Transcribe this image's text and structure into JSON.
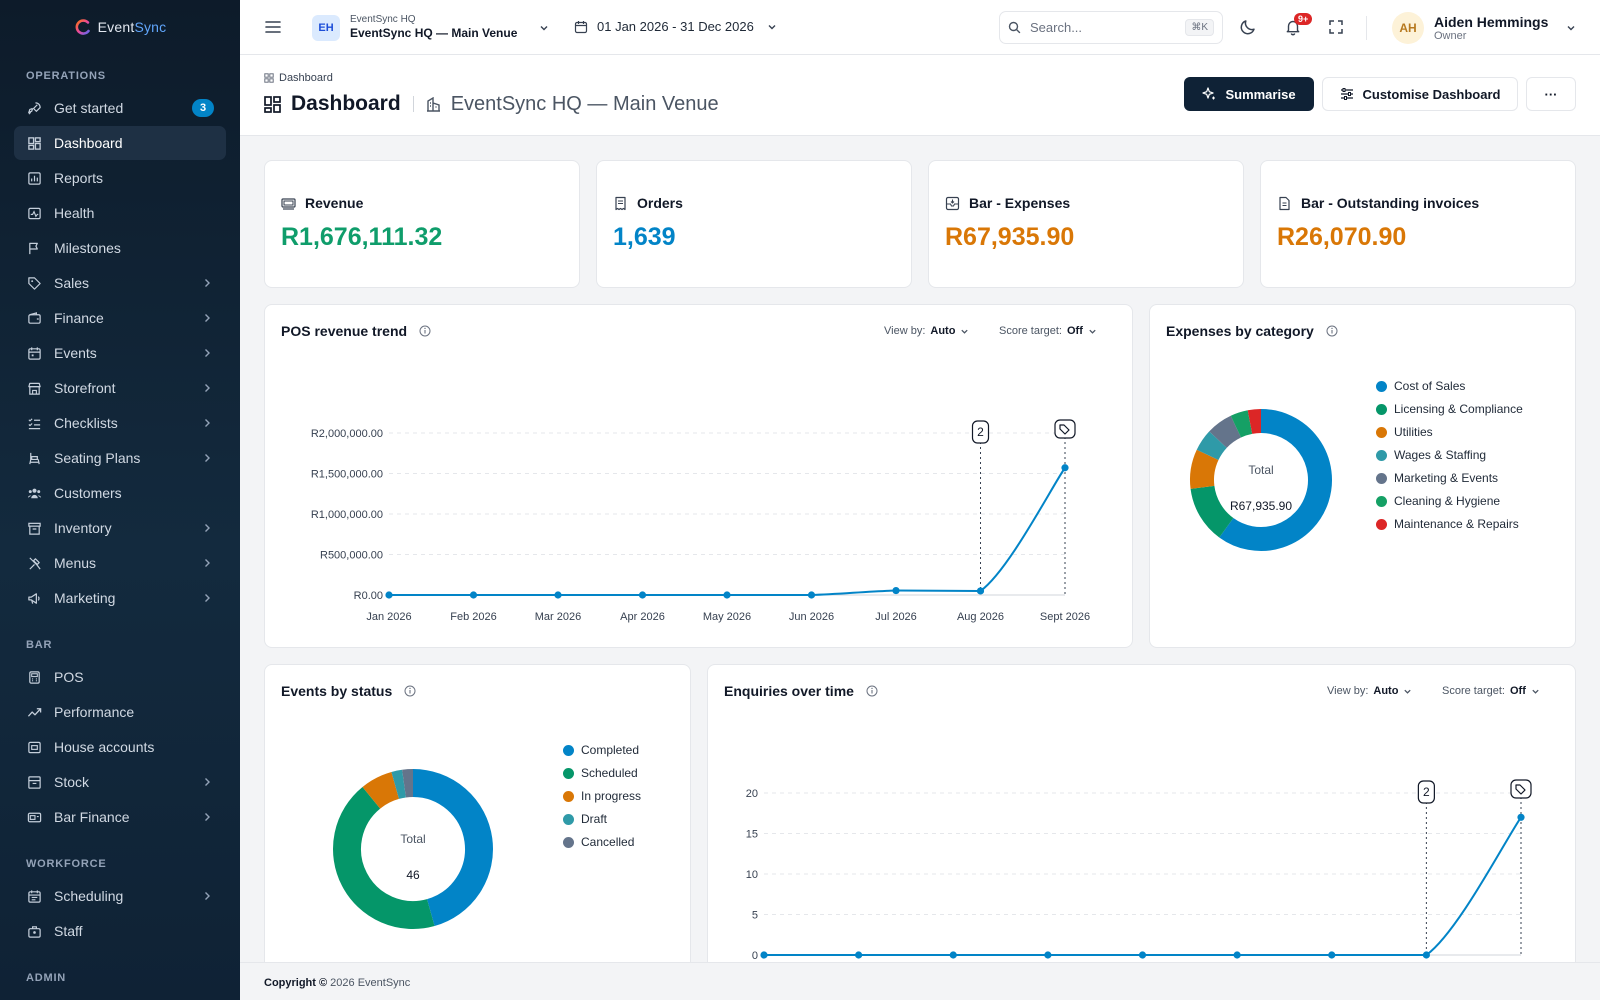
{
  "brand": {
    "name_a": "Event",
    "name_b": "Sync"
  },
  "sidebar": {
    "sections": [
      "OPERATIONS",
      "BAR",
      "WORKFORCE",
      "ADMIN"
    ],
    "operations": [
      {
        "label": "Get started",
        "icon": "rocket-icon",
        "badge": "3"
      },
      {
        "label": "Dashboard",
        "icon": "dashboard-icon",
        "active": true
      },
      {
        "label": "Reports",
        "icon": "reports-icon"
      },
      {
        "label": "Health",
        "icon": "health-icon"
      },
      {
        "label": "Milestones",
        "icon": "flag-icon"
      },
      {
        "label": "Sales",
        "icon": "tag-icon",
        "chevron": true
      },
      {
        "label": "Finance",
        "icon": "wallet-icon",
        "chevron": true
      },
      {
        "label": "Events",
        "icon": "calendar-icon",
        "chevron": true
      },
      {
        "label": "Storefront",
        "icon": "store-icon",
        "chevron": true
      },
      {
        "label": "Checklists",
        "icon": "checklist-icon",
        "chevron": true
      },
      {
        "label": "Seating Plans",
        "icon": "seat-icon",
        "chevron": true
      },
      {
        "label": "Customers",
        "icon": "users-icon"
      },
      {
        "label": "Inventory",
        "icon": "archive-icon",
        "chevron": true
      },
      {
        "label": "Menus",
        "icon": "utensils-icon",
        "chevron": true
      },
      {
        "label": "Marketing",
        "icon": "megaphone-icon",
        "chevron": true
      }
    ],
    "bar": [
      {
        "label": "POS",
        "icon": "pos-icon"
      },
      {
        "label": "Performance",
        "icon": "trend-icon"
      },
      {
        "label": "House accounts",
        "icon": "house-account-icon"
      },
      {
        "label": "Stock",
        "icon": "box-icon",
        "chevron": true
      },
      {
        "label": "Bar Finance",
        "icon": "bar-finance-icon",
        "chevron": true
      }
    ],
    "workforce": [
      {
        "label": "Scheduling",
        "icon": "schedule-icon",
        "chevron": true
      },
      {
        "label": "Staff",
        "icon": "staff-icon"
      }
    ]
  },
  "topbar": {
    "venue_badge": "EH",
    "venue_org": "EventSync HQ",
    "venue_name": "EventSync HQ — Main Venue",
    "date_range": "01 Jan 2026 - 31 Dec 2026",
    "search_placeholder": "Search...",
    "search_shortcut": "⌘K",
    "notification_count": "9+",
    "user_initials": "AH",
    "user_name": "Aiden Hemmings",
    "user_role": "Owner"
  },
  "page": {
    "breadcrumb": "Dashboard",
    "title": "Dashboard",
    "venue": "EventSync HQ — Main Venue",
    "summarise_label": "Summarise",
    "customise_label": "Customise Dashboard",
    "more_label": "···"
  },
  "kpis": [
    {
      "label": "Revenue",
      "value": "R1,676,111.32",
      "color": "#0f9d6b",
      "icon": "cash-icon"
    },
    {
      "label": "Orders",
      "value": "1,639",
      "color": "#0284c7",
      "icon": "receipt-icon"
    },
    {
      "label": "Bar - Expenses",
      "value": "R67,935.90",
      "color": "#d97706",
      "icon": "expense-icon"
    },
    {
      "label": "Bar - Outstanding invoices",
      "value": "R26,070.90",
      "color": "#d97706",
      "icon": "invoice-icon"
    }
  ],
  "pos_trend": {
    "title": "POS revenue trend",
    "view_by_label": "View by:",
    "view_by_value": "Auto",
    "score_label": "Score target:",
    "score_value": "Off",
    "marker_label": "2"
  },
  "expenses": {
    "title": "Expenses by category",
    "total_label": "Total",
    "total_value": "R67,935.90"
  },
  "events_status": {
    "title": "Events by status",
    "total_label": "Total",
    "total_value": "46"
  },
  "enquiries": {
    "title": "Enquiries over time",
    "view_by_label": "View by:",
    "view_by_value": "Auto",
    "score_label": "Score target:",
    "score_value": "Off",
    "marker_label": "2"
  },
  "footer": {
    "copyright_label": "Copyright ©",
    "copyright_text": "2026 EventSync"
  },
  "chart_data": [
    {
      "type": "line",
      "title": "POS revenue trend",
      "categories": [
        "Jan 2026",
        "Feb 2026",
        "Mar 2026",
        "Apr 2026",
        "May 2026",
        "Jun 2026",
        "Jul 2026",
        "Aug 2026",
        "Sept 2026"
      ],
      "series": [
        {
          "values": [
            0,
            0,
            0,
            0,
            0,
            0,
            55000,
            50000,
            1571000
          ]
        }
      ],
      "yticks": [
        0,
        500000,
        1000000,
        1500000,
        2000000
      ],
      "ytick_labels": [
        "R0.00",
        "R500,000.00",
        "R1,000,000.00",
        "R1,500,000.00",
        "R2,000,000.00"
      ],
      "ylim": [
        0,
        2000000
      ],
      "markers": [
        {
          "category": "Aug 2026",
          "label": "2"
        },
        {
          "category": "Sept 2026",
          "icon": "tag-icon"
        }
      ],
      "grid": true,
      "color": "#0284c7"
    },
    {
      "type": "pie",
      "title": "Expenses by category",
      "donut": true,
      "legend_position": "right",
      "slices": [
        {
          "label": "Cost of Sales",
          "value": 60,
          "color": "#0284c7"
        },
        {
          "label": "Licensing & Compliance",
          "value": 13,
          "color": "#059669"
        },
        {
          "label": "Utilities",
          "value": 9,
          "color": "#d97706"
        },
        {
          "label": "Wages & Staffing",
          "value": 5,
          "color": "#2f9aa8"
        },
        {
          "label": "Marketing & Events",
          "value": 6,
          "color": "#64748b"
        },
        {
          "label": "Cleaning & Hygiene",
          "value": 4,
          "color": "#15a065"
        },
        {
          "label": "Maintenance & Repairs",
          "value": 3,
          "color": "#dc2626"
        }
      ]
    },
    {
      "type": "pie",
      "title": "Events by status",
      "donut": true,
      "legend_position": "right",
      "slices": [
        {
          "label": "Completed",
          "value": 21,
          "color": "#0284c7"
        },
        {
          "label": "Scheduled",
          "value": 20,
          "color": "#059669"
        },
        {
          "label": "In progress",
          "value": 3,
          "color": "#d97706"
        },
        {
          "label": "Draft",
          "value": 1,
          "color": "#2f9aa8"
        },
        {
          "label": "Cancelled",
          "value": 1,
          "color": "#64748b"
        }
      ]
    },
    {
      "type": "line",
      "title": "Enquiries over time",
      "series": [
        {
          "values": [
            0,
            0,
            0,
            0,
            0,
            0,
            0,
            0,
            17
          ]
        }
      ],
      "yticks": [
        0,
        5,
        10,
        15,
        20
      ],
      "ylim": [
        0,
        20
      ],
      "markers": [
        {
          "index": 7,
          "label": "2"
        },
        {
          "index": 8,
          "icon": "tag-icon"
        }
      ],
      "grid": true,
      "color": "#0284c7"
    }
  ]
}
